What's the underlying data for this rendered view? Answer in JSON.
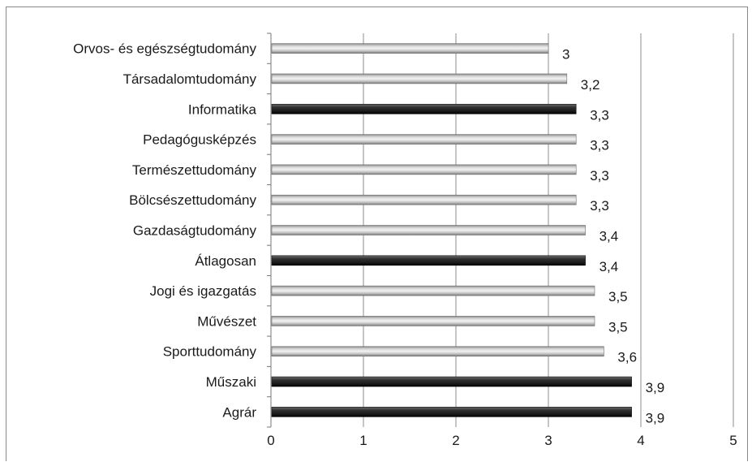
{
  "chart_data": {
    "type": "bar",
    "orientation": "horizontal",
    "categories": [
      "Orvos- és egészségtudomány",
      "Társadalomtudomány",
      "Informatika",
      "Pedagógusképzés",
      "Természettudomány",
      "Bölcsészettudomány",
      "Gazdaságtudomány",
      "Átlagosan",
      "Jogi és igazgatás",
      "Művészet",
      "Sporttudomány",
      "Műszaki",
      "Agrár"
    ],
    "values": [
      3,
      3.2,
      3.3,
      3.3,
      3.3,
      3.3,
      3.4,
      3.4,
      3.5,
      3.5,
      3.6,
      3.9,
      3.9
    ],
    "value_labels": [
      "3",
      "3,2",
      "3,3",
      "3,3",
      "3,3",
      "3,3",
      "3,4",
      "3,4",
      "3,5",
      "3,5",
      "3,6",
      "3,9",
      "3,9"
    ],
    "bar_styles": [
      "light",
      "light",
      "dark",
      "light",
      "light",
      "light",
      "light",
      "dark",
      "light",
      "light",
      "light",
      "dark",
      "dark"
    ],
    "xlim": [
      0,
      5
    ],
    "xticks": [
      0,
      1,
      2,
      3,
      4,
      5
    ],
    "xtick_labels": [
      "0",
      "1",
      "2",
      "3",
      "4",
      "5"
    ],
    "grid": "vertical",
    "legend": "none",
    "title": "",
    "xlabel": "",
    "ylabel": "",
    "colors": {
      "dark_bar": "#2b2b2b",
      "light_bar": "#c8c8c8",
      "gridline": "#8c8c8c"
    }
  }
}
